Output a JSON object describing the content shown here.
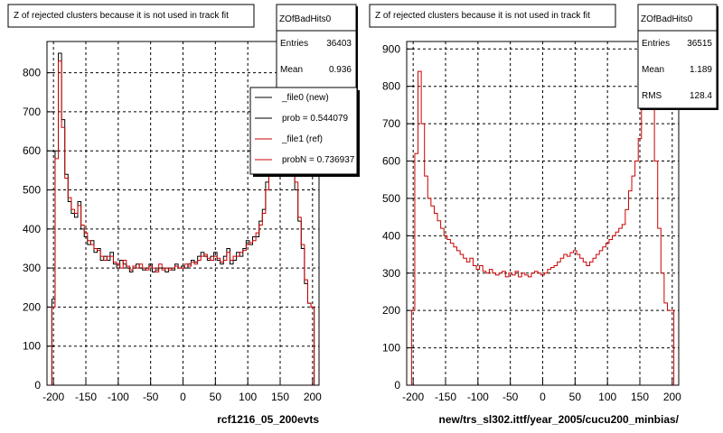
{
  "panels": [
    {
      "title": "Z of rejected clusters  because it is not used in track fit",
      "stats": {
        "name": "ZOfBadHits0",
        "rows": [
          {
            "label": "Entries",
            "value": "36403"
          },
          {
            "label": "Mean",
            "value": "0.936"
          }
        ]
      },
      "legend": [
        {
          "label": "_file0 (new)",
          "color": "#000000"
        },
        {
          "label": "prob = 0.544079",
          "color": "#000000"
        },
        {
          "label": "_file1 (ref)",
          "color": "#cc0000"
        },
        {
          "label": "probN = 0.736937",
          "color": "#cc0000"
        }
      ],
      "xlabel": "rcf1216_05_200evts"
    },
    {
      "title": "Z of rejected clusters  because it is not used in track fit",
      "stats": {
        "name": "ZOfBadHits0",
        "rows": [
          {
            "label": "Entries",
            "value": "36515"
          },
          {
            "label": "Mean",
            "value": "1.189"
          },
          {
            "label": "RMS",
            "value": "128.4"
          }
        ]
      },
      "legend": [],
      "xlabel": "new/trs_sl302.ittf/year_2005/cucu200_minbias/"
    }
  ],
  "colors": {
    "new": "#000000",
    "ref": "#cc0000"
  },
  "chart_data": [
    {
      "type": "line",
      "xlim": [
        -210,
        210
      ],
      "ylim": [
        0,
        880
      ],
      "xticks": [
        -200,
        -150,
        -100,
        -50,
        0,
        50,
        100,
        150,
        200
      ],
      "yticks": [
        0,
        100,
        200,
        300,
        400,
        500,
        600,
        700,
        800
      ],
      "grid": true,
      "series": [
        {
          "name": "_file0 (new)",
          "color": "#000000",
          "x": [
            -200,
            -195,
            -190,
            -185,
            -180,
            -175,
            -170,
            -165,
            -160,
            -155,
            -150,
            -145,
            -140,
            -135,
            -130,
            -125,
            -120,
            -115,
            -110,
            -105,
            -100,
            -95,
            -90,
            -85,
            -80,
            -75,
            -70,
            -65,
            -60,
            -55,
            -50,
            -45,
            -40,
            -35,
            -30,
            -25,
            -20,
            -15,
            -10,
            -5,
            0,
            5,
            10,
            15,
            20,
            25,
            30,
            35,
            40,
            45,
            50,
            55,
            60,
            65,
            70,
            75,
            80,
            85,
            90,
            95,
            100,
            105,
            110,
            115,
            120,
            125,
            130,
            135,
            140,
            145,
            150,
            155,
            160,
            165,
            170,
            175,
            180,
            185,
            190,
            195,
            200
          ],
          "y": [
            220,
            600,
            850,
            680,
            540,
            470,
            440,
            430,
            470,
            400,
            380,
            360,
            370,
            340,
            350,
            320,
            330,
            320,
            340,
            310,
            300,
            320,
            310,
            300,
            290,
            300,
            310,
            300,
            295,
            300,
            310,
            290,
            295,
            300,
            300,
            290,
            300,
            295,
            310,
            300,
            305,
            300,
            310,
            320,
            315,
            330,
            340,
            330,
            320,
            330,
            340,
            320,
            310,
            330,
            350,
            310,
            320,
            340,
            330,
            350,
            370,
            360,
            380,
            380,
            420,
            450,
            520,
            560,
            620,
            700,
            760,
            800,
            780,
            700,
            600,
            500,
            420,
            350,
            260,
            210,
            200
          ]
        },
        {
          "name": "_file1 (ref)",
          "color": "#cc0000",
          "x": [
            -200,
            -195,
            -190,
            -185,
            -180,
            -175,
            -170,
            -165,
            -160,
            -155,
            -150,
            -145,
            -140,
            -135,
            -130,
            -125,
            -120,
            -115,
            -110,
            -105,
            -100,
            -95,
            -90,
            -85,
            -80,
            -75,
            -70,
            -65,
            -60,
            -55,
            -50,
            -45,
            -40,
            -35,
            -30,
            -25,
            -20,
            -15,
            -10,
            -5,
            0,
            5,
            10,
            15,
            20,
            25,
            30,
            35,
            40,
            45,
            50,
            55,
            60,
            65,
            70,
            75,
            80,
            85,
            90,
            95,
            100,
            105,
            110,
            115,
            120,
            125,
            130,
            135,
            140,
            145,
            150,
            155,
            160,
            165,
            170,
            175,
            180,
            185,
            190,
            195,
            200
          ],
          "y": [
            200,
            580,
            830,
            660,
            530,
            480,
            450,
            440,
            460,
            410,
            390,
            370,
            360,
            350,
            345,
            330,
            320,
            330,
            330,
            315,
            310,
            300,
            320,
            305,
            295,
            305,
            300,
            310,
            300,
            295,
            305,
            300,
            290,
            310,
            295,
            300,
            295,
            300,
            305,
            300,
            300,
            310,
            305,
            315,
            310,
            320,
            330,
            335,
            325,
            320,
            330,
            325,
            315,
            320,
            340,
            320,
            330,
            330,
            340,
            345,
            360,
            365,
            370,
            390,
            410,
            440,
            500,
            540,
            600,
            690,
            770,
            880,
            800,
            700,
            620,
            520,
            430,
            360,
            270,
            210,
            200
          ]
        }
      ]
    },
    {
      "type": "line",
      "xlim": [
        -210,
        210
      ],
      "ylim": [
        0,
        920
      ],
      "xticks": [
        -200,
        -150,
        -100,
        -50,
        0,
        50,
        100,
        150,
        200
      ],
      "yticks": [
        0,
        100,
        200,
        300,
        400,
        500,
        600,
        700,
        800,
        900
      ],
      "grid": true,
      "series": [
        {
          "name": "",
          "color": "#cc0000",
          "x": [
            -200,
            -195,
            -190,
            -185,
            -180,
            -175,
            -170,
            -165,
            -160,
            -155,
            -150,
            -145,
            -140,
            -135,
            -130,
            -125,
            -120,
            -115,
            -110,
            -105,
            -100,
            -95,
            -90,
            -85,
            -80,
            -75,
            -70,
            -65,
            -60,
            -55,
            -50,
            -45,
            -40,
            -35,
            -30,
            -25,
            -20,
            -15,
            -10,
            -5,
            0,
            5,
            10,
            15,
            20,
            25,
            30,
            35,
            40,
            45,
            50,
            55,
            60,
            65,
            70,
            75,
            80,
            85,
            90,
            95,
            100,
            105,
            110,
            115,
            120,
            125,
            130,
            135,
            140,
            145,
            150,
            155,
            160,
            165,
            170,
            175,
            180,
            185,
            190,
            195,
            200
          ],
          "y": [
            200,
            620,
            840,
            700,
            560,
            500,
            480,
            460,
            440,
            420,
            400,
            390,
            380,
            370,
            360,
            350,
            340,
            330,
            340,
            320,
            310,
            320,
            305,
            300,
            310,
            300,
            295,
            300,
            305,
            290,
            300,
            295,
            305,
            290,
            300,
            295,
            290,
            300,
            305,
            300,
            295,
            300,
            310,
            315,
            320,
            330,
            340,
            350,
            345,
            355,
            360,
            350,
            340,
            330,
            320,
            330,
            340,
            350,
            360,
            370,
            380,
            390,
            400,
            410,
            420,
            430,
            470,
            520,
            560,
            600,
            660,
            740,
            800,
            840,
            780,
            600,
            420,
            300,
            220,
            200,
            200
          ]
        }
      ]
    }
  ]
}
